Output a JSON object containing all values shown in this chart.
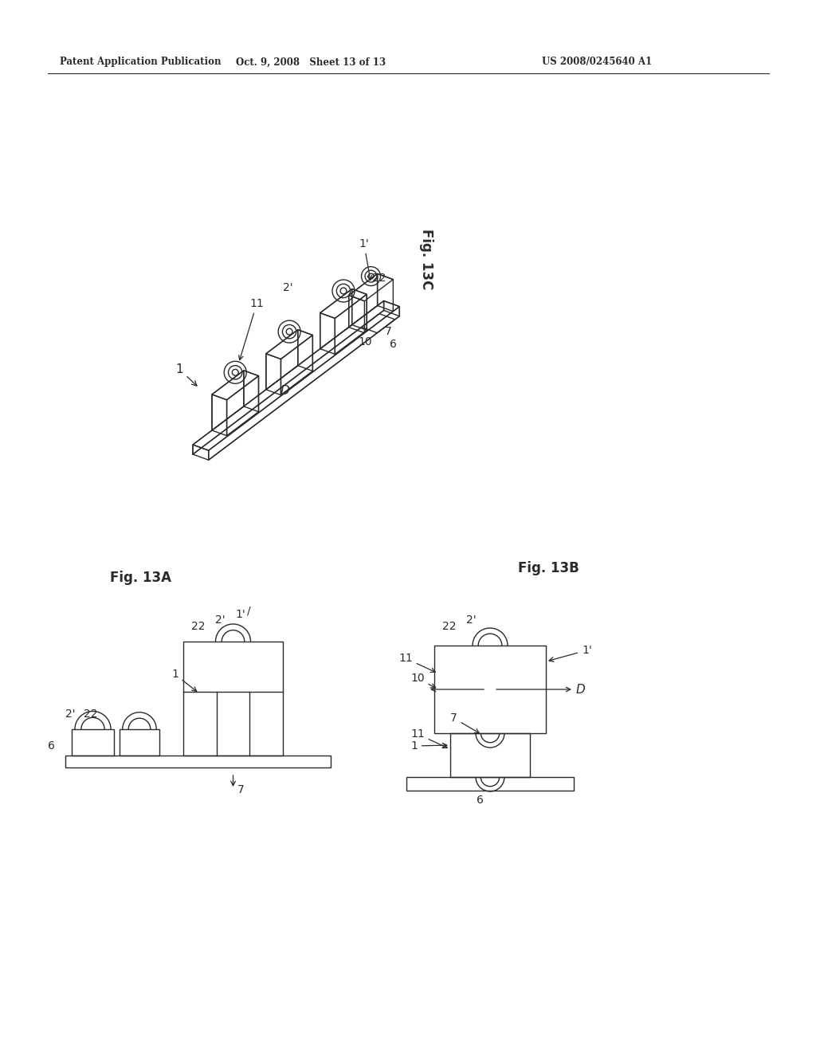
{
  "bg_color": "#ffffff",
  "line_color": "#2a2a2a",
  "line_width": 1.0,
  "page_width": 10.24,
  "page_height": 13.2,
  "header_left": "Patent Application Publication",
  "header_mid": "Oct. 9, 2008   Sheet 13 of 13",
  "header_right": "US 2008/0245640 A1"
}
